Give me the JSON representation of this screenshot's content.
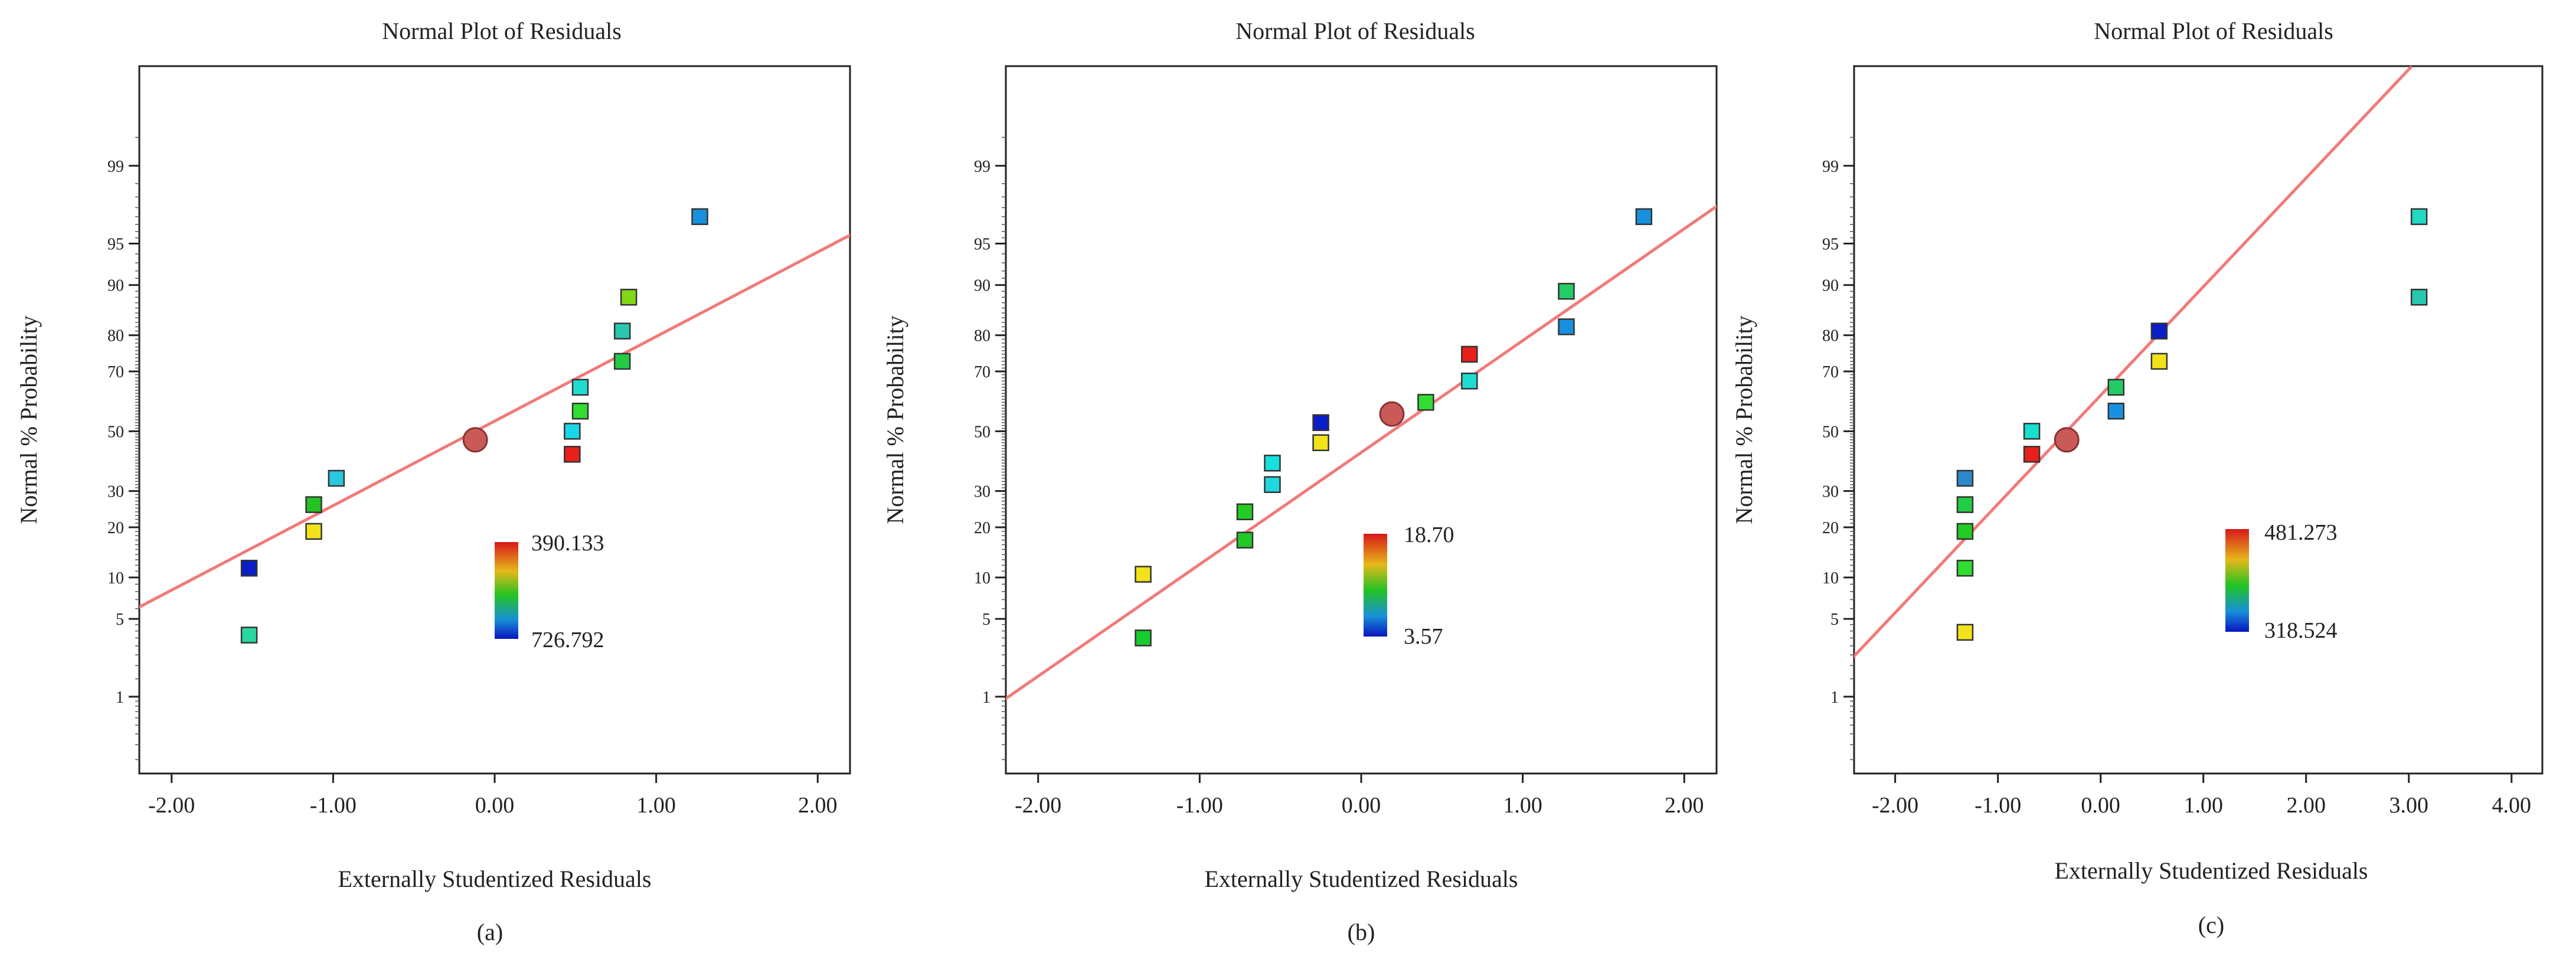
{
  "chart_data": [
    {
      "type": "scatter",
      "title": "Normal Plot of Residuals",
      "xlabel": "Externally Studentized Residuals",
      "ylabel": "Normal % Probability",
      "caption": "(a)",
      "xlim": [
        -2.2,
        2.2
      ],
      "xticks": [
        "-2.00",
        "-1.00",
        "0.00",
        "1.00",
        "2.00"
      ],
      "yticks": [
        "1",
        "5",
        "10",
        "20",
        "30",
        "50",
        "70",
        "80",
        "90",
        "95",
        "99"
      ],
      "legend": {
        "high": "390.133",
        "low": "726.792"
      },
      "fit_line": {
        "mean_x": -0.12,
        "slope_per_sd": 1.35
      },
      "mean_marker": {
        "x": -0.12,
        "p": 47
      },
      "points": [
        {
          "x": -1.52,
          "p": 11.5,
          "color": "#0a1ec8"
        },
        {
          "x": -1.52,
          "p": 3.7,
          "color": "#27d8a0"
        },
        {
          "x": -1.12,
          "p": 26,
          "color": "#22c322"
        },
        {
          "x": -1.12,
          "p": 19,
          "color": "#f2e21a"
        },
        {
          "x": -0.98,
          "p": 34,
          "color": "#29c8dc"
        },
        {
          "x": 0.48,
          "p": 42,
          "color": "#e8201c"
        },
        {
          "x": 0.48,
          "p": 50,
          "color": "#18d8e8"
        },
        {
          "x": 0.53,
          "p": 57,
          "color": "#30dd30"
        },
        {
          "x": 0.53,
          "p": 65,
          "color": "#20dcd0"
        },
        {
          "x": 0.79,
          "p": 73,
          "color": "#22cc44"
        },
        {
          "x": 0.79,
          "p": 81,
          "color": "#26c8b0"
        },
        {
          "x": 0.83,
          "p": 88,
          "color": "#80d818"
        },
        {
          "x": 1.27,
          "p": 97,
          "color": "#1890e0"
        }
      ]
    },
    {
      "type": "scatter",
      "title": "Normal Plot of Residuals",
      "xlabel": "Externally Studentized Residuals",
      "ylabel": "Normal % Probability",
      "caption": "(b)",
      "xlim": [
        -2.2,
        2.2
      ],
      "xticks": [
        "-2.00",
        "-1.00",
        "0.00",
        "1.00",
        "2.00"
      ],
      "yticks": [
        "1",
        "5",
        "10",
        "20",
        "30",
        "50",
        "70",
        "80",
        "90",
        "95",
        "99"
      ],
      "legend": {
        "high": "18.70",
        "low": "3.57"
      },
      "fit_line": {
        "mean_x": 0.19,
        "slope_per_sd": 1.02
      },
      "mean_marker": {
        "x": 0.19,
        "p": 56
      },
      "points": [
        {
          "x": -1.35,
          "p": 10.5,
          "color": "#f2e21a"
        },
        {
          "x": -1.35,
          "p": 3.5,
          "color": "#18cc30"
        },
        {
          "x": -0.72,
          "p": 24,
          "color": "#22cc22"
        },
        {
          "x": -0.72,
          "p": 17,
          "color": "#20c828"
        },
        {
          "x": -0.55,
          "p": 32,
          "color": "#22d8e0"
        },
        {
          "x": -0.55,
          "p": 39,
          "color": "#18e0e0"
        },
        {
          "x": -0.25,
          "p": 46,
          "color": "#f2e21a"
        },
        {
          "x": -0.25,
          "p": 53,
          "color": "#0a1ec8"
        },
        {
          "x": 0.4,
          "p": 60,
          "color": "#30dd30"
        },
        {
          "x": 0.67,
          "p": 67,
          "color": "#20dcd0"
        },
        {
          "x": 0.67,
          "p": 75,
          "color": "#e8201c"
        },
        {
          "x": 1.27,
          "p": 82,
          "color": "#1890e0"
        },
        {
          "x": 1.27,
          "p": 89,
          "color": "#22cc66"
        },
        {
          "x": 1.75,
          "p": 97,
          "color": "#1890e0"
        }
      ]
    },
    {
      "type": "scatter",
      "title": "Normal Plot of Residuals",
      "xlabel": "Externally Studentized Residuals",
      "ylabel": "Normal % Probability",
      "caption": "(c)",
      "xlim": [
        -2.4,
        4.3
      ],
      "xticks": [
        "-2.00",
        "-1.00",
        "0.00",
        "1.00",
        "2.00",
        "3.00",
        "4.00"
      ],
      "yticks": [
        "1",
        "5",
        "10",
        "20",
        "30",
        "50",
        "70",
        "80",
        "90",
        "95",
        "99"
      ],
      "legend": {
        "high": "481.273",
        "low": "318.524"
      },
      "fit_line": {
        "mean_x": -0.33,
        "slope_per_sd": 1.05
      },
      "mean_marker": {
        "x": -0.33,
        "p": 47
      },
      "points": [
        {
          "x": -1.32,
          "p": 3.9,
          "color": "#f2e21a"
        },
        {
          "x": -1.32,
          "p": 11.5,
          "color": "#30dd30"
        },
        {
          "x": -1.32,
          "p": 19,
          "color": "#22cc22"
        },
        {
          "x": -1.32,
          "p": 26,
          "color": "#22cc44"
        },
        {
          "x": -1.32,
          "p": 34,
          "color": "#2e88cc"
        },
        {
          "x": -0.67,
          "p": 42,
          "color": "#e8201c"
        },
        {
          "x": -0.67,
          "p": 50,
          "color": "#18e0d0"
        },
        {
          "x": 0.15,
          "p": 57,
          "color": "#1890e0"
        },
        {
          "x": 0.15,
          "p": 65,
          "color": "#22cc66"
        },
        {
          "x": 0.57,
          "p": 73,
          "color": "#f2e21a"
        },
        {
          "x": 0.57,
          "p": 81,
          "color": "#0a1ec8"
        },
        {
          "x": 3.1,
          "p": 88,
          "color": "#26c8b0"
        },
        {
          "x": 3.1,
          "p": 97,
          "color": "#22d8c0"
        }
      ]
    }
  ]
}
